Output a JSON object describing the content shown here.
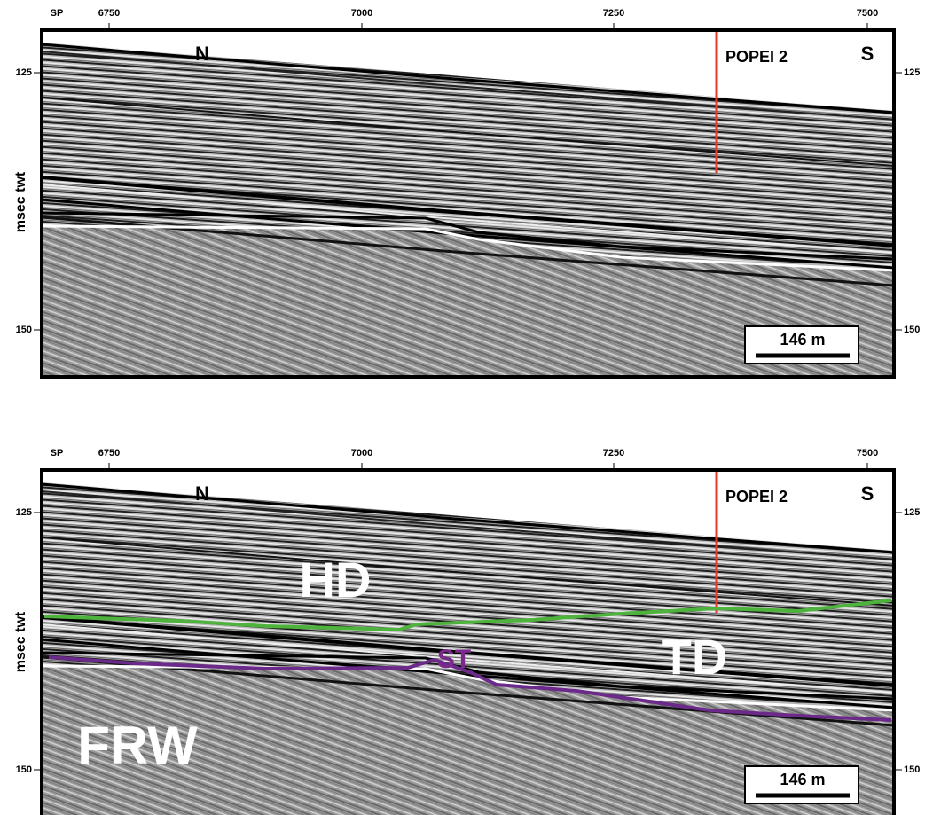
{
  "panels": [
    {
      "sp_label": "SP",
      "shotpoints": [
        "6750",
        "7000",
        "7250",
        "7500"
      ],
      "times": [
        "125",
        "150"
      ],
      "axis_label": "msec twt",
      "north": "N",
      "south": "S",
      "well": "POPEI 2",
      "scale": "146 m"
    },
    {
      "sp_label": "SP",
      "shotpoints": [
        "6750",
        "7000",
        "7250",
        "7500"
      ],
      "times": [
        "125",
        "150"
      ],
      "axis_label": "msec twt",
      "north": "N",
      "south": "S",
      "well": "POPEI 2",
      "scale": "146 m",
      "units": [
        "HD",
        "TD",
        "ST",
        "FRW"
      ]
    }
  ]
}
